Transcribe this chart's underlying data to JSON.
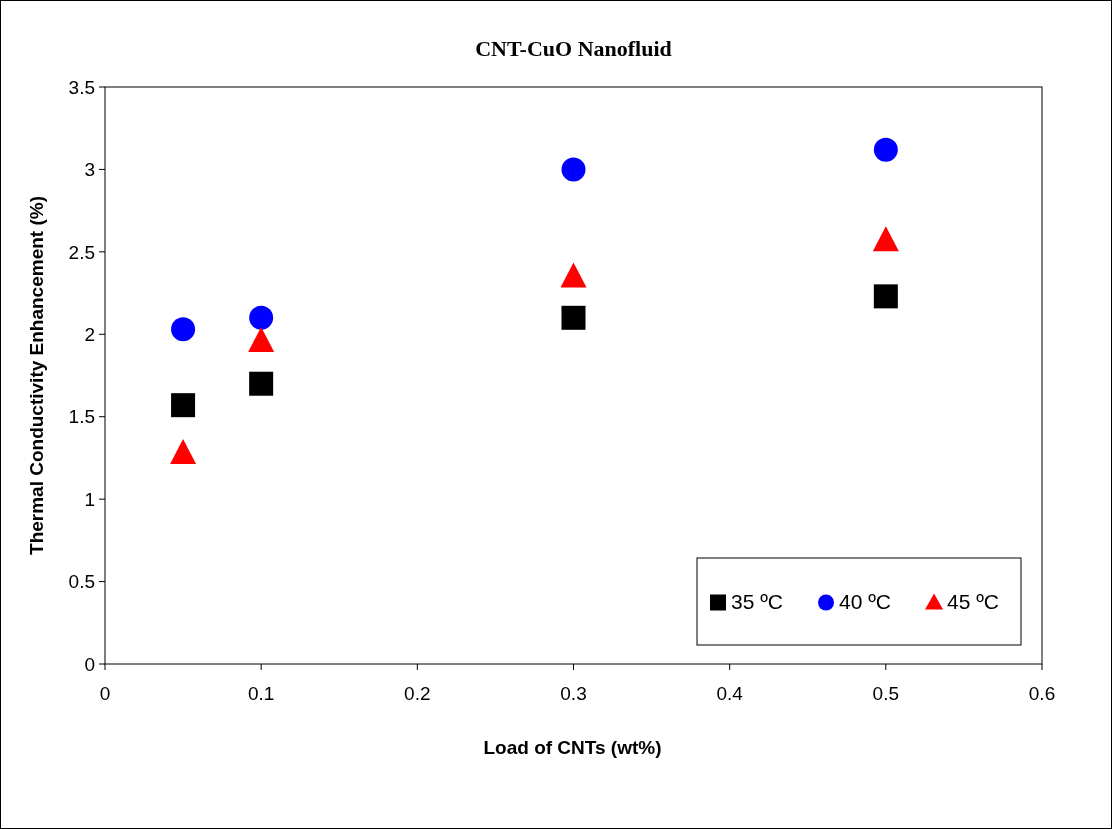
{
  "chart_data": {
    "type": "scatter",
    "title": "CNT-CuO Nanofluid",
    "xlabel": "Load of CNTs (wt%)",
    "ylabel": "Thermal Conductivity Enhancement (%)",
    "x": [
      0.05,
      0.1,
      0.3,
      0.5
    ],
    "series": [
      {
        "name": "35 ºC",
        "color": "#000000",
        "marker": "square",
        "values": [
          1.57,
          1.7,
          2.1,
          2.23
        ]
      },
      {
        "name": "40 ºC",
        "color": "#0000ff",
        "marker": "circle",
        "values": [
          2.03,
          2.1,
          3.0,
          3.12
        ]
      },
      {
        "name": "45 ºC",
        "color": "#ff0000",
        "marker": "triangle",
        "values": [
          1.28,
          1.96,
          2.35,
          2.57
        ]
      }
    ],
    "xlim": [
      0,
      0.6
    ],
    "xticks": [
      0,
      0.1,
      0.2,
      0.3,
      0.4,
      0.5,
      0.6
    ],
    "ylim": [
      0,
      3.5
    ],
    "yticks": [
      0,
      0.5,
      1,
      1.5,
      2,
      2.5,
      3,
      3.5
    ],
    "grid": false,
    "legend": "bottom right"
  }
}
